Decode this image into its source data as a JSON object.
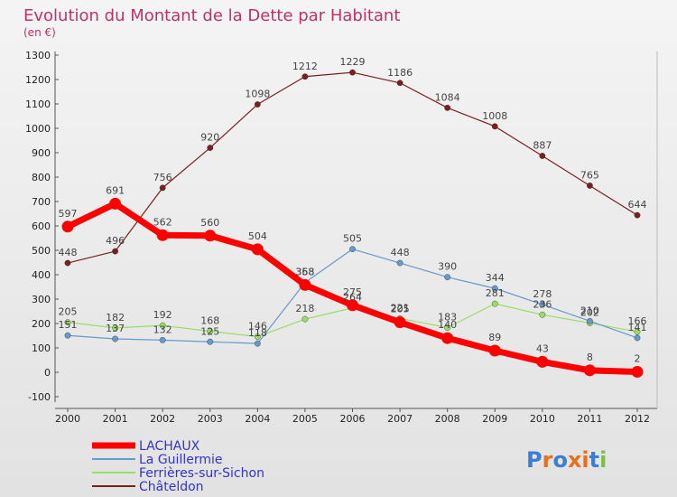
{
  "chart_data": {
    "type": "line",
    "title": "Evolution du Montant de la Dette par Habitant",
    "subtitle": "(en €)",
    "xlabel": "",
    "ylabel": "",
    "x": [
      2000,
      2001,
      2002,
      2003,
      2004,
      2005,
      2006,
      2007,
      2008,
      2009,
      2010,
      2011,
      2012
    ],
    "ylim": [
      -100,
      1300
    ],
    "yticks": [
      -100,
      0,
      100,
      200,
      300,
      400,
      500,
      600,
      700,
      800,
      900,
      1000,
      1100,
      1200,
      1300
    ],
    "grid": false,
    "legend_position": "bottom-left",
    "series": [
      {
        "name": "LACHAUX",
        "color": "#ff0000",
        "values": [
          597,
          691,
          562,
          560,
          504,
          358,
          275,
          205,
          140,
          89,
          43,
          8,
          2
        ]
      },
      {
        "name": "La Guillermie",
        "color": "#6699cc",
        "values": [
          151,
          137,
          132,
          125,
          118,
          368,
          505,
          448,
          390,
          344,
          278,
          210,
          141
        ]
      },
      {
        "name": "Ferrières-sur-Sichon",
        "color": "#99dd66",
        "values": [
          205,
          182,
          192,
          168,
          146,
          218,
          264,
          221,
          183,
          281,
          236,
          202,
          166
        ]
      },
      {
        "name": "Châteldon",
        "color": "#7a1e1e",
        "values": [
          448,
          496,
          756,
          920,
          1098,
          1212,
          1229,
          1186,
          1084,
          1008,
          887,
          765,
          644
        ]
      }
    ]
  },
  "colors": {
    "title": "#c0306a",
    "legend_text": "#3333cc",
    "axis": "#555555"
  },
  "logo": {
    "text": "Proxiti"
  }
}
